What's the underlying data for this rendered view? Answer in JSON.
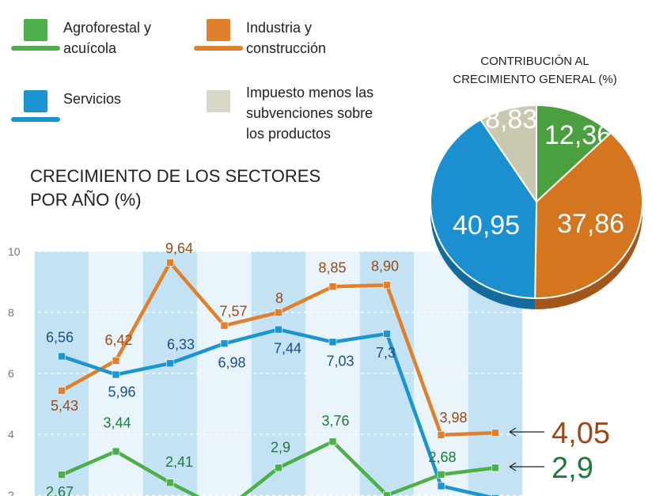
{
  "legend": [
    {
      "label_lines": [
        "Agroforestal y",
        "acuícola"
      ],
      "color": "#4daf4a"
    },
    {
      "label_lines": [
        "Industria y",
        "construcción"
      ],
      "color": "#e07f2c"
    },
    {
      "label_lines": [
        "Servicios"
      ],
      "color": "#1b95d2"
    },
    {
      "label_lines": [
        "Impuesto menos las",
        "subvenciones sobre",
        "los productos"
      ],
      "color": "#d8d6c4"
    }
  ],
  "pie_title_lines": [
    "CONTRIBUCIÓN AL",
    "CRECIMIENTO GENERAL (%)"
  ],
  "chart_title_lines": [
    "CRECIMIENTO DE LOS SECTORES",
    "POR AÑO (%)"
  ],
  "chart_data": [
    {
      "type": "line",
      "title": "CRECIMIENTO DE LOS SECTORES POR AÑO (%)",
      "ylim": [
        2,
        10
      ],
      "yticks": [
        "2",
        "4",
        "6",
        "8",
        "10"
      ],
      "grid": "alternating vertical stripes",
      "series": [
        {
          "name": "Industria y construcción",
          "color": "#e07f2c",
          "label_color": "#9a4a18",
          "values": [
            5.43,
            6.42,
            9.64,
            7.57,
            8,
            8.85,
            8.9,
            3.98,
            4.05
          ],
          "labels": [
            "5,43",
            "6,42",
            "9,64",
            "7,57",
            "8",
            "8,85",
            "8,90",
            "3,98",
            "4,05"
          ]
        },
        {
          "name": "Servicios",
          "color": "#1b95d2",
          "label_color": "#1a4f8b",
          "values": [
            6.56,
            5.96,
            6.33,
            6.98,
            7.44,
            7.03,
            7.3,
            2.3,
            1.9
          ],
          "labels": [
            "6,56",
            "5,96",
            "6,33",
            "6,98",
            "7,44",
            "7,03",
            "7,3",
            "",
            ""
          ]
        },
        {
          "name": "Agroforestal y acuícola",
          "color": "#4daf4a",
          "label_color": "#1f7a3a",
          "values": [
            2.67,
            3.44,
            2.41,
            1.5,
            2.9,
            3.76,
            2.0,
            2.68,
            2.9
          ],
          "labels": [
            "2,67",
            "3,44",
            "2,41",
            "",
            "2,9",
            "3,76",
            "",
            "2,68",
            "2,9"
          ]
        }
      ]
    },
    {
      "type": "pie",
      "title": "CONTRIBUCIÓN AL CRECIMIENTO GENERAL (%)",
      "slices": [
        {
          "name": "Agroforestal y acuícola",
          "value": 12.36,
          "label": "12,36",
          "color": "#4aa03f",
          "side": "#2f7a2a"
        },
        {
          "name": "Industria y construcción",
          "value": 37.86,
          "label": "37,86",
          "color": "#d4751f",
          "side": "#a3561a"
        },
        {
          "name": "Servicios",
          "value": 40.95,
          "label": "40,95",
          "color": "#1b8fcf",
          "side": "#126a9e"
        },
        {
          "name": "Impuesto menos las subvenciones sobre los productos",
          "value": 8.83,
          "label": "8,83",
          "color": "#cbc8b2",
          "side": "#9c9984"
        }
      ]
    }
  ]
}
